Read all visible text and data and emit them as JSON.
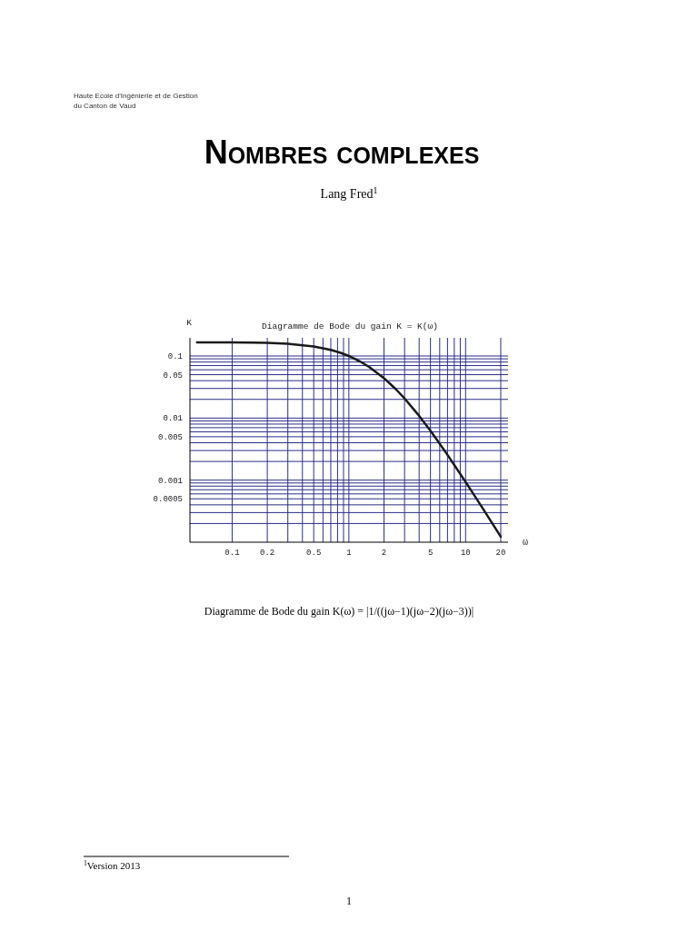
{
  "chart_data": {
    "type": "line",
    "title": "Diagramme de Bode du gain K = K(ω)",
    "xlabel": "ω",
    "ylabel": "K",
    "log": "xy",
    "grid": true,
    "marker": "none",
    "line_style": "solid",
    "x": [
      0.05,
      0.1,
      0.15,
      0.2,
      0.3,
      0.5,
      0.7,
      0.85,
      1,
      1.25,
      1.5,
      2,
      2.5,
      3,
      4,
      5,
      7,
      10,
      14,
      20
    ],
    "series": [
      {
        "color": "#1a1a1a",
        "values": [
          0.166,
          0.1655,
          0.1642,
          0.1623,
          0.1571,
          0.1427,
          0.1255,
          0.1124,
          0.1,
          0.0815,
          0.0662,
          0.0439,
          0.0297,
          0.0207,
          0.01085,
          0.00625,
          0.00255,
          0.000935,
          0.000352,
          0.000123
        ]
      }
    ],
    "xlim": [
      0.0435,
      23.1
    ],
    "ylim": [
      0.0001,
      0.196
    ],
    "xticks": [
      0.1,
      0.2,
      {
        "value": 0.3,
        "label": null
      },
      {
        "value": 0.4,
        "label": null
      },
      0.5,
      {
        "value": 0.6,
        "label": null
      },
      {
        "value": 0.7,
        "label": null
      },
      {
        "value": 0.8,
        "label": null
      },
      {
        "value": 0.9,
        "label": null
      },
      1,
      2,
      {
        "value": 3,
        "label": null
      },
      {
        "value": 4,
        "label": null
      },
      5,
      {
        "value": 6,
        "label": null
      },
      {
        "value": 7,
        "label": null
      },
      {
        "value": 8,
        "label": null
      },
      {
        "value": 9,
        "label": null
      },
      10,
      20
    ],
    "yticks": [
      0.1,
      {
        "value": 0.09,
        "label": null
      },
      {
        "value": 0.08,
        "label": null
      },
      {
        "value": 0.07,
        "label": null
      },
      {
        "value": 0.06,
        "label": null
      },
      0.05,
      {
        "value": 0.04,
        "label": null
      },
      {
        "value": 0.03,
        "label": null
      },
      {
        "value": 0.02,
        "label": null
      },
      0.01,
      {
        "value": 0.009,
        "label": null
      },
      {
        "value": 0.008,
        "label": null
      },
      {
        "value": 0.007,
        "label": null
      },
      {
        "value": 0.006,
        "label": null
      },
      0.005,
      {
        "value": 0.004,
        "label": null
      },
      {
        "value": 0.003,
        "label": null
      },
      {
        "value": 0.002,
        "label": null
      },
      0.001,
      {
        "value": 0.0009,
        "label": null
      },
      {
        "value": 0.0008,
        "label": null
      },
      {
        "value": 0.0007,
        "label": null
      },
      {
        "value": 0.0006,
        "label": null
      },
      0.0005,
      {
        "value": 0.0004,
        "label": null
      },
      {
        "value": 0.0003,
        "label": null
      },
      {
        "value": 0.0002,
        "label": null
      }
    ],
    "annotations": [
      "Haute Ecole d'Ingénierie et de Gestion",
      "du Canton de Vaud",
      "Nombres complexes",
      "Lang Fred$^{1}$",
      "Diagramme de Bode du gain K(ω) = |1/((jω−1)(jω−2)(jω−3))|",
      "$^{1}$Version 2013",
      "1"
    ]
  }
}
